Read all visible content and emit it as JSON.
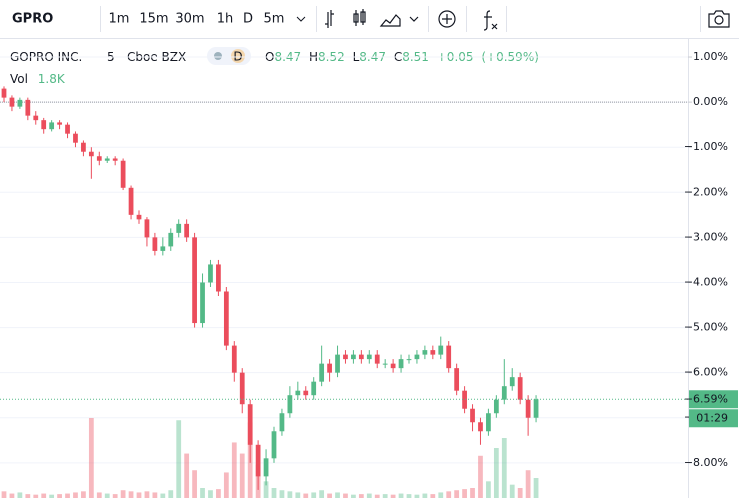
{
  "toolbar": {
    "symbol": "GPRO",
    "intervals": [
      "1m",
      "15m",
      "30m",
      "1h",
      "D",
      "5m"
    ],
    "active": 5
  },
  "chart_data": {
    "type": "candlestick",
    "title": "GOPRO INC.",
    "interval": "5",
    "exchange": "Cboe BZX",
    "badge": "D",
    "ohlc_legend": {
      "open_label": "O",
      "open": 8.47,
      "high_label": "H",
      "high": 8.52,
      "low_label": "L",
      "low": 8.47,
      "close_label": "C",
      "close": 8.51,
      "change": "+0.05",
      "change_pct": "(+0.59%)"
    },
    "volume_legend": {
      "name": "Vol",
      "value": {
        "value": 1800,
        "label": "1.8K"
      }
    },
    "up_color": "#53b987",
    "down_color": "#eb4d5c",
    "open": [
      0.3,
      0.1,
      -0.1,
      0.05,
      -0.3,
      -0.4,
      -0.6,
      -0.45,
      -0.5,
      -0.7,
      -0.9,
      -1.1,
      -1.2,
      -1.3,
      -1.25,
      -1.3,
      -1.9,
      -2.5,
      -2.6,
      -3.0,
      -3.3,
      -3.2,
      -2.9,
      -2.7,
      -3.0,
      -4.9,
      -4.0,
      -3.6,
      -4.2,
      -5.4,
      -6.0,
      -6.7,
      -7.6,
      -8.3,
      -7.9,
      -7.3,
      -6.9,
      -6.5,
      -6.4,
      -6.5,
      -6.2,
      -5.8,
      -6.0,
      -5.6,
      -5.7,
      -5.6,
      -5.7,
      -5.6,
      -5.8,
      -5.8,
      -5.9,
      -5.7,
      -5.7,
      -5.6,
      -5.5,
      -5.6,
      -5.4,
      -5.9,
      -6.4,
      -6.8,
      -7.1,
      -7.3,
      -6.9,
      -6.6,
      -6.3,
      -6.1,
      -6.6,
      -7.0
    ],
    "high": [
      0.35,
      0.15,
      0.1,
      0.1,
      -0.2,
      -0.35,
      -0.4,
      -0.4,
      -0.45,
      -0.65,
      -0.85,
      -1.0,
      -1.1,
      -1.2,
      -1.2,
      -1.25,
      -1.85,
      -2.4,
      -2.55,
      -2.9,
      -3.0,
      -2.8,
      -2.6,
      -2.6,
      -2.9,
      -3.8,
      -3.5,
      -3.5,
      -4.1,
      -5.3,
      -5.9,
      -6.6,
      -7.5,
      -7.7,
      -7.2,
      -6.8,
      -6.3,
      -6.2,
      -6.3,
      -6.1,
      -5.4,
      -5.7,
      -5.4,
      -5.5,
      -5.5,
      -5.5,
      -5.5,
      -5.5,
      -5.7,
      -5.7,
      -5.6,
      -5.6,
      -5.5,
      -5.4,
      -5.4,
      -5.2,
      -5.3,
      -5.8,
      -6.3,
      -6.7,
      -7.0,
      -6.8,
      -6.5,
      -5.7,
      -5.9,
      -6.0,
      -6.5,
      -6.5
    ],
    "low": [
      0.0,
      -0.2,
      -0.15,
      -0.4,
      -0.5,
      -0.7,
      -0.65,
      -0.6,
      -0.8,
      -1.0,
      -1.2,
      -1.7,
      -1.4,
      -1.35,
      -1.4,
      -1.95,
      -2.6,
      -2.7,
      -3.2,
      -3.4,
      -3.4,
      -3.3,
      -3.0,
      -3.1,
      -5.0,
      -5.0,
      -4.1,
      -4.3,
      -5.5,
      -6.2,
      -6.9,
      -8.0,
      -8.6,
      -8.5,
      -8.0,
      -7.4,
      -7.0,
      -6.6,
      -6.6,
      -6.6,
      -6.3,
      -6.2,
      -6.1,
      -5.8,
      -5.8,
      -5.8,
      -5.8,
      -5.9,
      -5.9,
      -6.0,
      -6.0,
      -5.8,
      -5.8,
      -5.7,
      -5.7,
      -5.7,
      -6.0,
      -6.5,
      -6.9,
      -7.3,
      -7.6,
      -7.4,
      -7.0,
      -6.7,
      -6.4,
      -6.7,
      -7.4,
      -7.1
    ],
    "close": [
      0.1,
      -0.1,
      0.05,
      -0.3,
      -0.4,
      -0.6,
      -0.45,
      -0.5,
      -0.7,
      -0.9,
      -1.1,
      -1.2,
      -1.3,
      -1.25,
      -1.3,
      -1.9,
      -2.5,
      -2.6,
      -3.0,
      -3.3,
      -3.2,
      -2.9,
      -2.7,
      -3.0,
      -4.9,
      -4.0,
      -3.6,
      -4.2,
      -5.4,
      -6.0,
      -6.7,
      -7.6,
      -8.3,
      -7.9,
      -7.3,
      -6.9,
      -6.5,
      -6.4,
      -6.5,
      -6.2,
      -5.8,
      -6.0,
      -5.6,
      -5.7,
      -5.6,
      -5.7,
      -5.6,
      -5.8,
      -5.8,
      -5.9,
      -5.7,
      -5.7,
      -5.6,
      -5.5,
      -5.6,
      -5.4,
      -5.9,
      -6.4,
      -6.8,
      -7.1,
      -7.3,
      -6.9,
      -6.6,
      -6.3,
      -6.1,
      -6.6,
      -7.0,
      -6.59
    ],
    "volume": [
      600,
      400,
      500,
      350,
      300,
      400,
      300,
      350,
      400,
      500,
      600,
      7200,
      500,
      400,
      350,
      700,
      600,
      500,
      600,
      500,
      400,
      700,
      7000,
      4000,
      2500,
      900,
      700,
      800,
      2300,
      5000,
      4000,
      6800,
      3000,
      1500,
      900,
      700,
      600,
      500,
      400,
      500,
      700,
      400,
      500,
      400,
      300,
      350,
      400,
      300,
      350,
      300,
      400,
      350,
      300,
      400,
      350,
      500,
      600,
      700,
      800,
      900,
      3800,
      1500,
      4500,
      5400,
      1200,
      900,
      2500,
      1800
    ],
    "ylim": [
      -8.78,
      1.4
    ],
    "yticks": [
      {
        "value": 1,
        "label": "1.00%"
      },
      {
        "value": 0,
        "label": "0.00%"
      },
      {
        "value": -1,
        "label": "−1.00%"
      },
      {
        "value": -2,
        "label": "−2.00%"
      },
      {
        "value": -3,
        "label": "−3.00%"
      },
      {
        "value": -4,
        "label": "−4.00%"
      },
      {
        "value": -5,
        "label": "−5.00%"
      },
      {
        "value": -6,
        "label": "−6.00%"
      },
      {
        "value": -7,
        "label": "−7.00%"
      },
      {
        "value": -8,
        "label": "−8.00%"
      }
    ],
    "last": {
      "value": -6.59,
      "label": "−6.59%"
    },
    "countdown": "01:29"
  }
}
